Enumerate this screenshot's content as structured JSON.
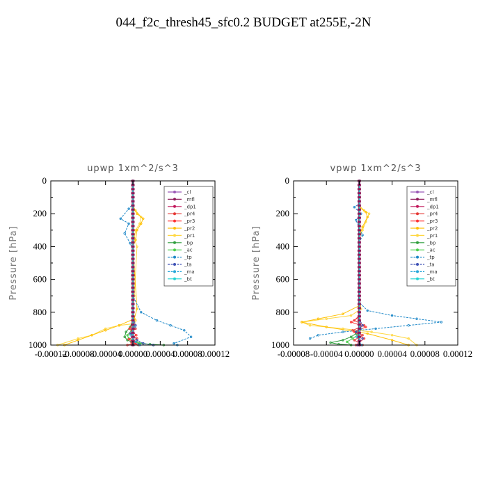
{
  "title": "044_f2c_thresh45_sfc0.2  BUDGET at255E,-2N",
  "colors": {
    "_cl": "#9b59b6",
    "_mfl": "#8e1a5a",
    "_dp1": "#c2185b",
    "_pr4": "#e53935",
    "_pr3": "#ff3333",
    "_pr2": "#ffc107",
    "_pr1": "#ffd740",
    "_bp": "#2e9e3c",
    "_ac": "#4ccf4c",
    "_tp": "#1e88c8",
    "_ta": "#3f51b5",
    "_ma": "#26a6d9",
    "_bt": "#22d3d3"
  },
  "chart_data": [
    {
      "type": "line",
      "title": "upwp   1xm^2/s^3",
      "ylabel": "Pressure [hPa]",
      "xlim": [
        -0.00012,
        0.00012
      ],
      "ylim": [
        1000,
        0
      ],
      "xticks": [
        "-0.00012",
        "-0.00008",
        "-0.00004",
        "0.00000",
        "0.00004",
        "0.00008",
        "0.00012"
      ],
      "yticks": [
        "0",
        "200",
        "400",
        "600",
        "800",
        "1000"
      ],
      "legend_position": "top-right",
      "legend": [
        "_cl",
        "_mfl",
        "_dp1",
        "_pr4",
        "_pr3",
        "_pr2",
        "_pr1",
        "_bp",
        "_ac",
        "_tp",
        "_ta",
        "_ma",
        "_bt"
      ],
      "series": [
        {
          "name": "_pr1",
          "x": [
            0,
            0,
            4e-06,
            1.2e-05,
            1e-05,
            4e-06,
            2e-06,
            6e-06,
            2e-06,
            0,
            4e-06,
            2e-06,
            -2e-05,
            -4e-05,
            -6e-05,
            -8e-05,
            -0.00011
          ],
          "y": [
            0,
            150,
            180,
            220,
            260,
            300,
            350,
            400,
            700,
            800,
            850,
            870,
            880,
            900,
            940,
            960,
            1000
          ]
        },
        {
          "name": "_pr2",
          "x": [
            0,
            0,
            6e-06,
            1.5e-05,
            1.2e-05,
            6e-06,
            4e-06,
            0,
            6e-06,
            2e-06,
            -2e-05,
            -4e-05,
            -6e-05,
            -8e-05,
            -0.0001
          ],
          "y": [
            0,
            160,
            200,
            230,
            260,
            300,
            360,
            400,
            780,
            840,
            880,
            910,
            940,
            970,
            1000
          ]
        },
        {
          "name": "_tp",
          "x": [
            0,
            0,
            -6e-06,
            -1.8e-05,
            -6e-06,
            -1.2e-05,
            -4e-06,
            0,
            0,
            1.2e-05,
            3.5e-05,
            5.5e-05,
            7.5e-05,
            8.5e-05,
            6e-05,
            6.5e-05
          ],
          "y": [
            0,
            140,
            170,
            230,
            260,
            320,
            380,
            420,
            700,
            800,
            850,
            880,
            910,
            950,
            990,
            1000
          ]
        },
        {
          "name": "_bp",
          "x": [
            0,
            0,
            -4e-06,
            -1e-05,
            -1.2e-05,
            -8e-06,
            -2e-06,
            1e-05,
            2.5e-05,
            4.5e-05
          ],
          "y": [
            0,
            850,
            890,
            920,
            950,
            970,
            980,
            990,
            995,
            1000
          ]
        },
        {
          "name": "_ac",
          "x": [
            0,
            0,
            -2e-06,
            -8e-06,
            -6e-06,
            5e-06,
            1.5e-05,
            3e-05
          ],
          "y": [
            0,
            880,
            910,
            940,
            960,
            980,
            990,
            1000
          ]
        },
        {
          "name": "_pr4",
          "x": [
            0,
            0,
            4e-06,
            -4e-06,
            6e-06,
            -2e-06,
            8e-06
          ],
          "y": [
            0,
            860,
            900,
            930,
            960,
            985,
            1000
          ]
        },
        {
          "name": "_pr3",
          "x": [
            0,
            0,
            -5e-06,
            5e-06,
            -6e-06,
            4e-06,
            -8e-06
          ],
          "y": [
            0,
            870,
            900,
            940,
            965,
            990,
            1000
          ]
        },
        {
          "name": "_ta",
          "x": [
            0,
            0,
            4e-06,
            -4e-06,
            6e-06,
            1.5e-05,
            3e-05
          ],
          "y": [
            0,
            820,
            880,
            930,
            970,
            990,
            1000
          ]
        },
        {
          "name": "_ma",
          "x": [
            0,
            0,
            3e-06,
            -3e-06,
            4e-06,
            1e-05
          ],
          "y": [
            0,
            840,
            890,
            940,
            980,
            1000
          ]
        },
        {
          "name": "_cl",
          "x": [
            0,
            0
          ],
          "y": [
            0,
            1000
          ]
        },
        {
          "name": "_mfl",
          "x": [
            0,
            0
          ],
          "y": [
            0,
            1000
          ]
        },
        {
          "name": "_dp1",
          "x": [
            0,
            0
          ],
          "y": [
            0,
            1000
          ]
        },
        {
          "name": "_bt",
          "x": [
            0,
            0
          ],
          "y": [
            0,
            1000
          ]
        }
      ]
    },
    {
      "type": "line",
      "title": "vpwp   1xm^2/s^3",
      "ylabel": "Pressure [hPa]",
      "xlim": [
        -8e-05,
        0.00012
      ],
      "ylim": [
        1000,
        0
      ],
      "xticks": [
        "-0.00008",
        "-0.00004",
        "0.00000",
        "0.00004",
        "0.00008",
        "0.00012"
      ],
      "yticks": [
        "0",
        "200",
        "400",
        "600",
        "800",
        "1000"
      ],
      "legend_position": "top-right",
      "legend": [
        "_cl",
        "_mfl",
        "_dp1",
        "_pr4",
        "_pr3",
        "_pr2",
        "_pr1",
        "_bp",
        "_ac",
        "_tp",
        "_ta",
        "_ma",
        "_bt"
      ],
      "series": [
        {
          "name": "_pr1",
          "x": [
            0,
            0,
            6e-06,
            1.2e-05,
            8e-06,
            4e-06,
            0,
            0,
            2e-06,
            -1e-05,
            -4e-05,
            -7e-05,
            -6e-05,
            -2e-05,
            1.5e-05,
            4e-05,
            6e-05,
            7e-05
          ],
          "y": [
            0,
            150,
            180,
            200,
            250,
            300,
            350,
            700,
            780,
            820,
            840,
            860,
            880,
            900,
            920,
            940,
            960,
            1000
          ]
        },
        {
          "name": "_pr2",
          "x": [
            0,
            0,
            8e-06,
            1e-05,
            4e-06,
            0,
            0,
            -2e-05,
            -5e-05,
            -7e-05,
            -4e-05,
            1e-05,
            4e-05,
            6e-05
          ],
          "y": [
            0,
            160,
            190,
            220,
            280,
            340,
            760,
            810,
            840,
            860,
            890,
            930,
            970,
            1000
          ]
        },
        {
          "name": "_tp",
          "x": [
            0,
            0,
            -6e-06,
            2e-06,
            -4e-06,
            4e-06,
            0,
            0,
            1e-05,
            4e-05,
            7e-05,
            0.0001,
            6e-05,
            2e-05,
            -2e-05,
            -5e-05,
            -6e-05
          ],
          "y": [
            0,
            140,
            160,
            200,
            240,
            330,
            380,
            740,
            790,
            820,
            840,
            860,
            880,
            900,
            920,
            940,
            960
          ]
        },
        {
          "name": "_bp",
          "x": [
            0,
            0,
            -4e-06,
            -1e-05,
            -2e-05,
            -3.5e-05,
            -2.5e-05,
            -1e-05
          ],
          "y": [
            0,
            900,
            930,
            950,
            970,
            985,
            995,
            1000
          ]
        },
        {
          "name": "_ac",
          "x": [
            0,
            0,
            -2e-06,
            -8e-06,
            -1.5e-05,
            -1e-05
          ],
          "y": [
            0,
            910,
            940,
            960,
            980,
            1000
          ]
        },
        {
          "name": "_pr4",
          "x": [
            0,
            0,
            -6e-06,
            6e-06,
            -8e-06,
            4e-06,
            -6e-06,
            4e-06
          ],
          "y": [
            0,
            820,
            850,
            880,
            910,
            940,
            970,
            1000
          ]
        },
        {
          "name": "_pr3",
          "x": [
            0,
            0,
            -1e-05,
            8e-06,
            -6e-06,
            6e-06,
            -4e-06
          ],
          "y": [
            0,
            830,
            860,
            890,
            920,
            960,
            1000
          ]
        },
        {
          "name": "_ta",
          "x": [
            0,
            0,
            4e-06,
            -4e-06,
            4e-06,
            -2e-06
          ],
          "y": [
            0,
            840,
            880,
            920,
            960,
            1000
          ]
        },
        {
          "name": "_ma",
          "x": [
            0,
            0,
            2e-06,
            -3e-06,
            3e-06
          ],
          "y": [
            0,
            850,
            900,
            950,
            1000
          ]
        },
        {
          "name": "_cl",
          "x": [
            0,
            0
          ],
          "y": [
            0,
            1000
          ]
        },
        {
          "name": "_mfl",
          "x": [
            0,
            0
          ],
          "y": [
            0,
            1000
          ]
        },
        {
          "name": "_dp1",
          "x": [
            0,
            0
          ],
          "y": [
            0,
            1000
          ]
        },
        {
          "name": "_bt",
          "x": [
            0,
            0
          ],
          "y": [
            0,
            1000
          ]
        }
      ]
    }
  ]
}
